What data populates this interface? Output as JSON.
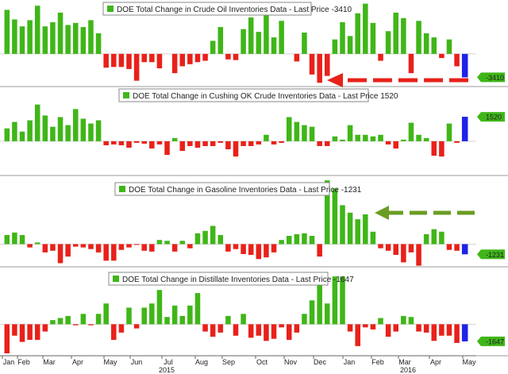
{
  "colors": {
    "positive": "#3fb618",
    "negative": "#e8211a",
    "last": "#1f22e8",
    "grid": "#d4d4d4",
    "tag_bg": "#3fb618",
    "red_arrow": "#e8211a",
    "green_arrow": "#6b9d24"
  },
  "chart_data": [
    {
      "type": "bar",
      "title": "DOE Total Change in Crude Oil Inventories Data - Last Price -3410",
      "last_label": "-3410",
      "last_value": -3410,
      "ylim": [
        -4400,
        7600
      ],
      "values": [
        6400,
        5000,
        4000,
        4900,
        7000,
        4000,
        4600,
        6000,
        4200,
        4500,
        3900,
        4900,
        3000,
        -2000,
        -1900,
        -1900,
        -2200,
        -3900,
        -1200,
        -1200,
        -2100,
        0,
        -2800,
        -1800,
        -1500,
        -1200,
        -1000,
        1900,
        3900,
        -800,
        -900,
        3600,
        5300,
        3200,
        5900,
        2400,
        4800,
        0,
        -1100,
        3100,
        -3000,
        -4200,
        -3200,
        2100,
        4600,
        2600,
        5900,
        7300,
        4500,
        -1000,
        3300,
        6000,
        5200,
        -2800,
        4800,
        3000,
        2400,
        -600,
        2100,
        -1800,
        -3410
      ]
    },
    {
      "type": "bar",
      "title": "DOE Total Change in Cushing OK Crude Inventories Data - Last Price 1520",
      "last_label": "1520",
      "last_value": 1520,
      "ylim": [
        -1980,
        3250
      ],
      "values": [
        800,
        1200,
        600,
        1300,
        2280,
        1600,
        900,
        1500,
        1000,
        2000,
        1400,
        1100,
        1300,
        -250,
        -200,
        -250,
        -400,
        -100,
        -150,
        -450,
        -200,
        -850,
        200,
        -600,
        -300,
        -400,
        -300,
        -300,
        -100,
        -500,
        -950,
        -300,
        -300,
        -200,
        400,
        -200,
        -100,
        1500,
        1200,
        1000,
        900,
        -300,
        -300,
        300,
        100,
        1000,
        400,
        400,
        300,
        400,
        -200,
        -450,
        100,
        1150,
        400,
        200,
        -900,
        -950,
        1100,
        -100,
        1520
      ]
    },
    {
      "type": "bar",
      "title": "DOE Total Change in Gasoline Inventories Data - Last Price -1231",
      "last_label": "-1231",
      "last_value": -1231,
      "ylim": [
        -2450,
        8000
      ],
      "values": [
        1100,
        1400,
        1100,
        -400,
        200,
        -1000,
        -800,
        -2300,
        -1500,
        -300,
        -400,
        -600,
        -1000,
        -2000,
        -2000,
        -700,
        -400,
        -100,
        -800,
        -900,
        500,
        400,
        -900,
        400,
        -500,
        1300,
        1600,
        2200,
        1100,
        -900,
        -600,
        -1200,
        -1300,
        -1800,
        -1600,
        -1000,
        500,
        1000,
        1200,
        1300,
        1000,
        -1500,
        7700,
        6700,
        4700,
        3800,
        3000,
        3600,
        1500,
        -500,
        -800,
        -1300,
        -2200,
        -1000,
        -2600,
        1200,
        1800,
        1500,
        -700,
        -800,
        -1231
      ]
    },
    {
      "type": "bar",
      "title": "DOE Total Change in Distillate Inventories Data - Last Price -1647",
      "last_label": "-1647",
      "last_value": -1647,
      "ylim": [
        -2800,
        5300
      ],
      "values": [
        -2800,
        -1100,
        -1700,
        -1500,
        -1500,
        -700,
        400,
        600,
        800,
        -100,
        1000,
        -100,
        1000,
        2000,
        -1500,
        -800,
        1600,
        -400,
        1600,
        2000,
        3300,
        700,
        1800,
        800,
        1800,
        3000,
        -700,
        -1200,
        -800,
        800,
        -1100,
        1000,
        -1300,
        -1100,
        -1600,
        -1400,
        -300,
        -1500,
        -800,
        1000,
        2300,
        3800,
        2000,
        4600,
        4600,
        -700,
        -2100,
        -300,
        -500,
        600,
        -1200,
        -700,
        800,
        700,
        -700,
        -800,
        -1600,
        -1100,
        -1100,
        -1800,
        -1647
      ]
    }
  ],
  "axis_ticks_top": [
    {
      "label": "Jan",
      "index": 0
    },
    {
      "label": "Feb",
      "index": 4
    },
    {
      "label": "Mar",
      "index": 8
    },
    {
      "label": "Apr",
      "index": 13
    },
    {
      "label": "May",
      "index": 17
    },
    {
      "label": "Jun",
      "index": 21
    },
    {
      "label": "Jul",
      "index": 26
    },
    {
      "label": "Aug",
      "index": 30
    },
    {
      "label": "Sep",
      "index": 34
    },
    {
      "label": "Oct",
      "index": 39
    },
    {
      "label": "Nov",
      "index": 43
    },
    {
      "label": "Dec",
      "index": 48
    },
    {
      "label": "Jan",
      "index": 52
    },
    {
      "label": "Feb",
      "index": 56
    },
    {
      "label": "Mar",
      "index": 60
    },
    {
      "label": "Apr",
      "index": 65
    },
    {
      "label": "May",
      "index": 70
    }
  ],
  "axis_years": [
    {
      "label": "2015",
      "index": 25
    },
    {
      "label": "2016",
      "index": 62
    }
  ]
}
